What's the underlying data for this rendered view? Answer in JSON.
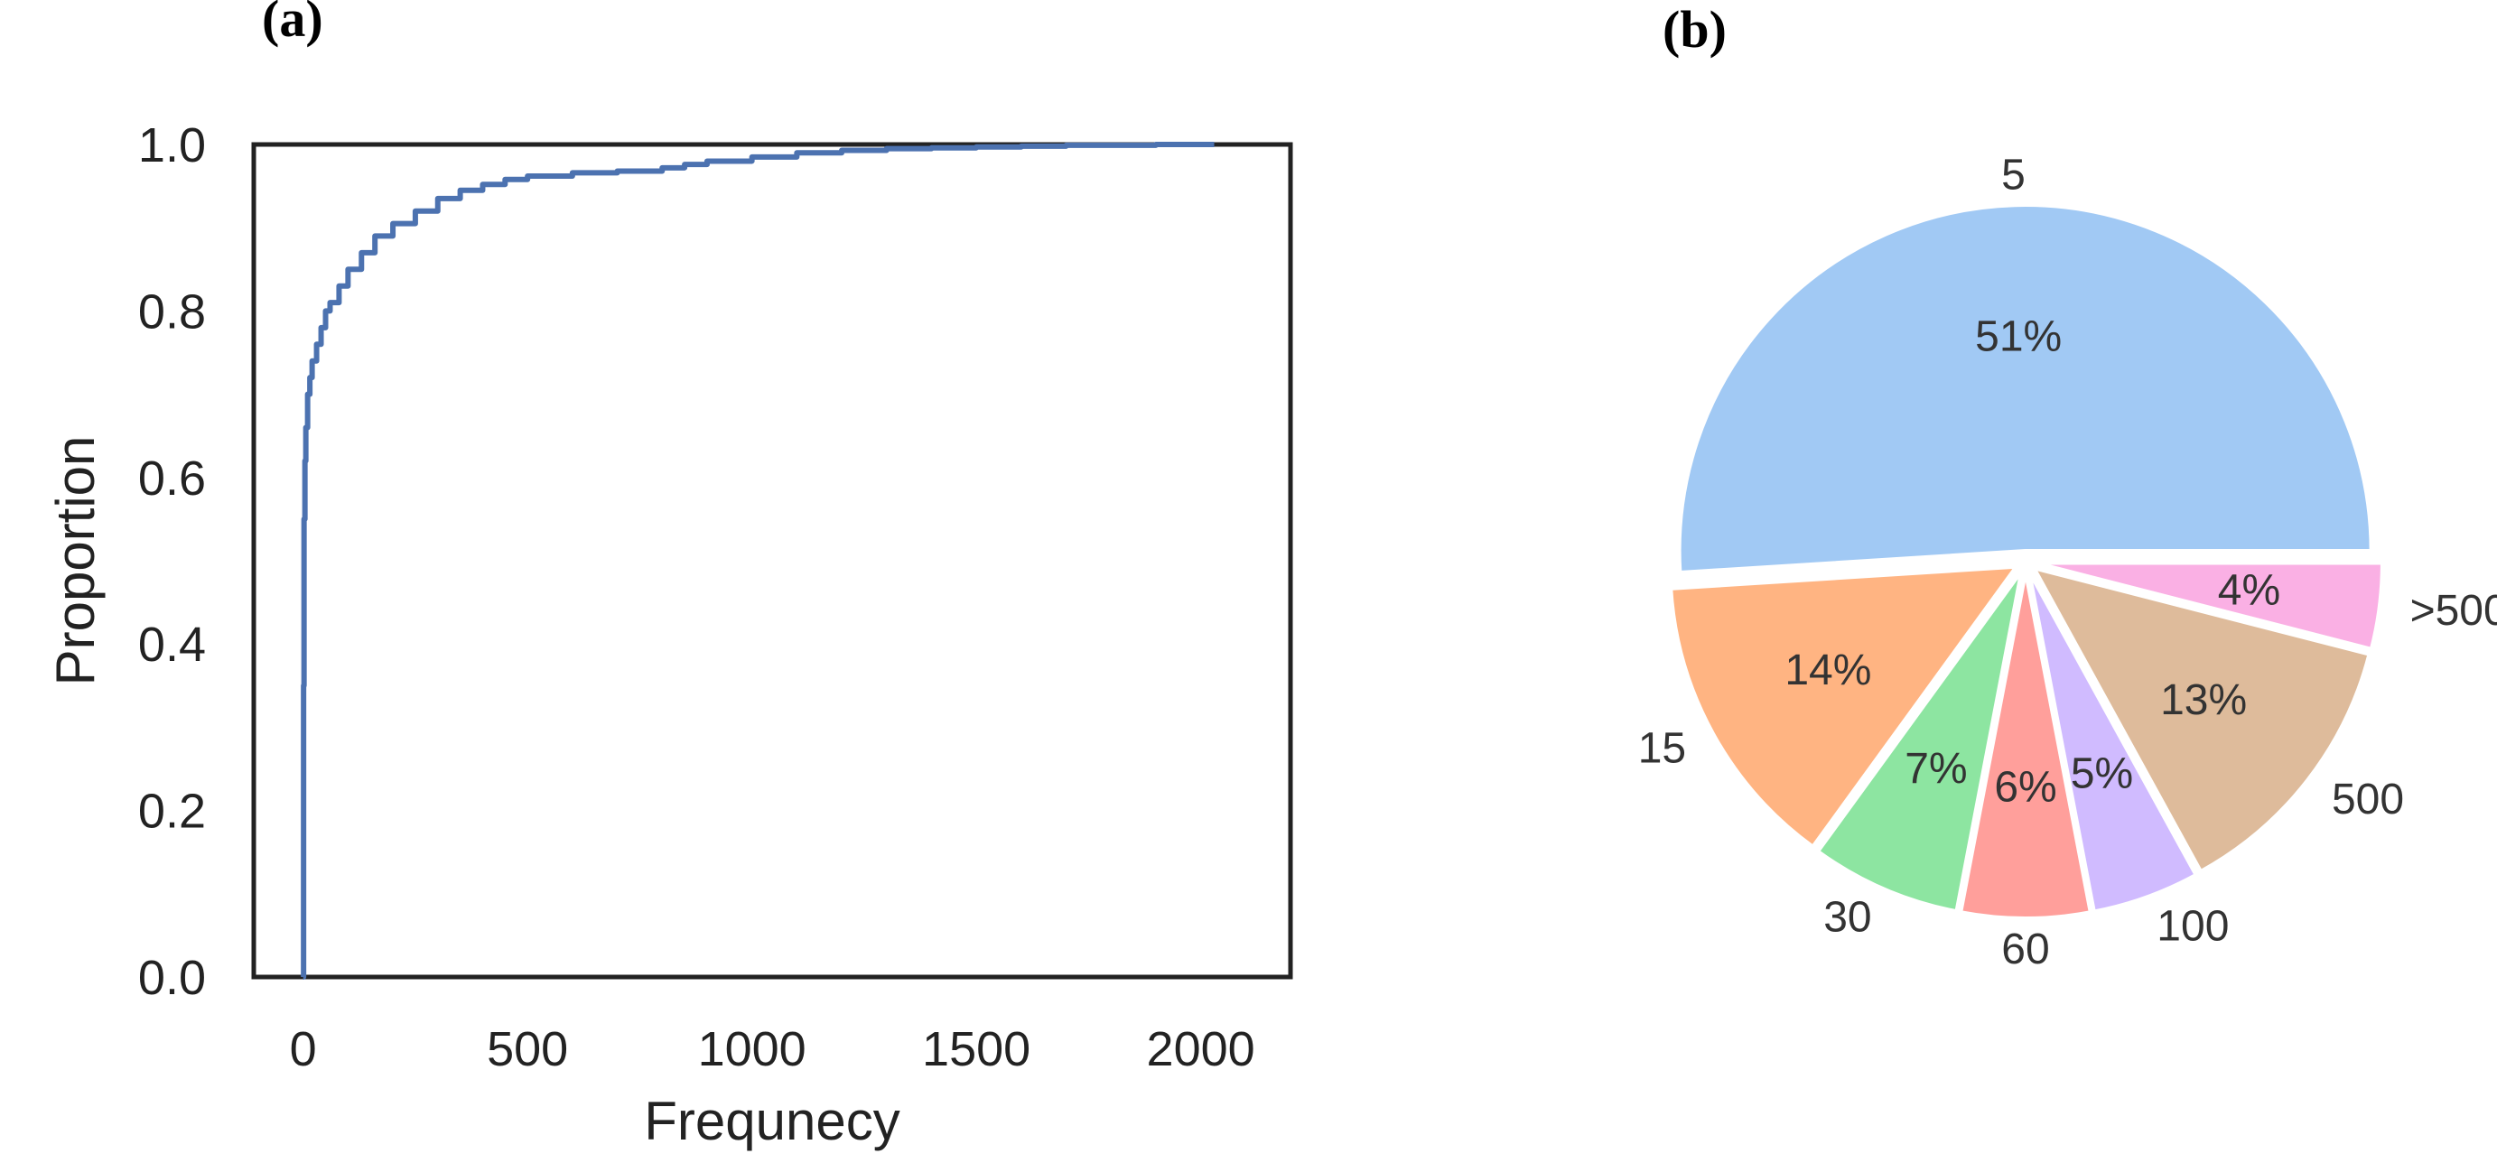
{
  "chart_data": [
    {
      "panel_label": "(a)",
      "type": "line",
      "subtype": "ecdf",
      "xlabel": "Frequnecy",
      "ylabel": "Proportion",
      "xlim": [
        -110,
        2200
      ],
      "ylim": [
        0,
        1.0
      ],
      "x_ticks": [
        0,
        500,
        1000,
        1500,
        2000
      ],
      "y_ticks": [
        "0.0",
        "0.2",
        "0.4",
        "0.6",
        "0.8",
        "1.0"
      ],
      "grid": false,
      "color": "#4c72b0",
      "series": [
        {
          "x": [
            0,
            1,
            2,
            4,
            6,
            10,
            15,
            20,
            30,
            40,
            50,
            60,
            80,
            100,
            130,
            160,
            200,
            250,
            300,
            350,
            400,
            450,
            500,
            600,
            700,
            800,
            850,
            900,
            1000,
            1100,
            1200,
            1300,
            1400,
            1500,
            1600,
            1700,
            1800,
            1900,
            2000,
            2030
          ],
          "y": [
            0.0,
            0.35,
            0.55,
            0.62,
            0.66,
            0.7,
            0.72,
            0.74,
            0.76,
            0.78,
            0.8,
            0.81,
            0.83,
            0.85,
            0.87,
            0.89,
            0.905,
            0.92,
            0.935,
            0.945,
            0.952,
            0.958,
            0.962,
            0.966,
            0.968,
            0.972,
            0.976,
            0.98,
            0.985,
            0.99,
            0.993,
            0.995,
            0.996,
            0.997,
            0.998,
            0.999,
            0.999,
            1.0,
            1.0,
            1.0
          ]
        }
      ]
    },
    {
      "panel_label": "(b)",
      "type": "pie",
      "categories": [
        "5",
        "15",
        "30",
        "60",
        "100",
        "500",
        ">500"
      ],
      "values": [
        51,
        14,
        7,
        6,
        5,
        13,
        4
      ],
      "labels_pct": [
        "51%",
        "14%",
        "7%",
        "6%",
        "5%",
        "13%",
        "4%"
      ],
      "colors": [
        "#a1c9f4",
        "#ffb482",
        "#8de5a1",
        "#ff9f9b",
        "#d0bbff",
        "#debb9b",
        "#fab0e4"
      ],
      "start_angle_deg": 0,
      "direction": "counterclockwise",
      "explode": true
    }
  ]
}
